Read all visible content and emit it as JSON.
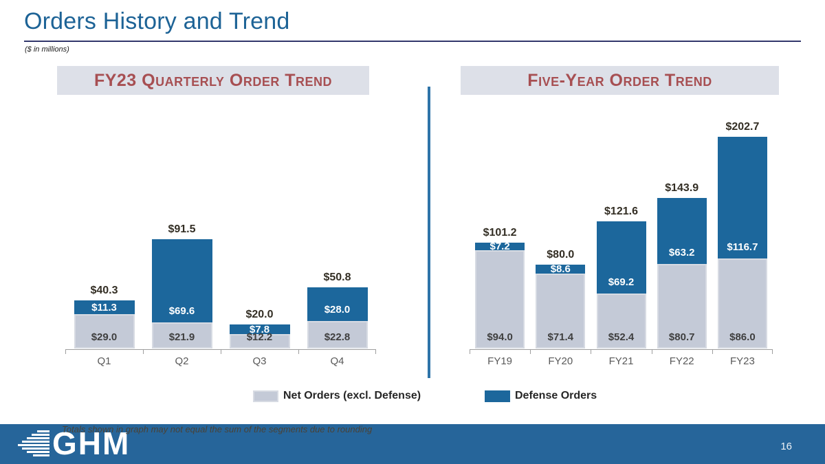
{
  "slide": {
    "title": "Orders History and Trend",
    "subtitle": "($ in millions)",
    "footnote": "Totals shown in graph may not equal the sum of the segments due to rounding",
    "page_number": "16",
    "logo_text": "GHM"
  },
  "colors": {
    "title_blue": "#1D6396",
    "header_text": "#A74F52",
    "header_bg": "#DDE0E8",
    "defense": "#1C679C",
    "net": "#C4CAD7",
    "footer_bg": "#26659A",
    "divider": "#2E74A8"
  },
  "legend": [
    {
      "label": "Net Orders (excl. Defense)",
      "color_key": "net"
    },
    {
      "label": "Defense Orders",
      "color_key": "defense"
    }
  ],
  "chart_data": [
    {
      "type": "bar",
      "stacked": true,
      "title": "FY23 Quarterly Order Trend",
      "categories": [
        "Q1",
        "Q2",
        "Q3",
        "Q4"
      ],
      "series": [
        {
          "name": "Net Orders (excl. Defense)",
          "values": [
            29.0,
            21.9,
            12.2,
            22.8
          ],
          "labels": [
            "$29.0",
            "$21.9",
            "$12.2",
            "$22.8"
          ]
        },
        {
          "name": "Defense Orders",
          "values": [
            11.3,
            69.6,
            7.8,
            28.0
          ],
          "labels": [
            "$11.3",
            "$69.6",
            "$7.8",
            "$28.0"
          ]
        }
      ],
      "totals": [
        40.3,
        91.5,
        20.0,
        50.8
      ],
      "total_labels": [
        "$40.3",
        "$91.5",
        "$20.0",
        "$50.8"
      ],
      "ylim": [
        0,
        105
      ],
      "grid": false,
      "legend_position": "bottom"
    },
    {
      "type": "bar",
      "stacked": true,
      "title": "Five-Year Order Trend",
      "categories": [
        "FY19",
        "FY20",
        "FY21",
        "FY22",
        "FY23"
      ],
      "series": [
        {
          "name": "Net Orders (excl. Defense)",
          "values": [
            94.0,
            71.4,
            52.4,
            80.7,
            86.0
          ],
          "labels": [
            "$94.0",
            "$71.4",
            "$52.4",
            "$80.7",
            "$86.0"
          ]
        },
        {
          "name": "Defense Orders",
          "values": [
            7.2,
            8.6,
            69.2,
            63.2,
            116.7
          ],
          "labels": [
            "$7.2",
            "$8.6",
            "$69.2",
            "$63.2",
            "$116.7"
          ]
        }
      ],
      "totals": [
        101.2,
        80.0,
        121.6,
        143.9,
        202.7
      ],
      "total_labels": [
        "$101.2",
        "$80.0",
        "$121.6",
        "$143.9",
        "$202.7"
      ],
      "ylim": [
        0,
        210
      ],
      "grid": false,
      "legend_position": "bottom"
    }
  ]
}
